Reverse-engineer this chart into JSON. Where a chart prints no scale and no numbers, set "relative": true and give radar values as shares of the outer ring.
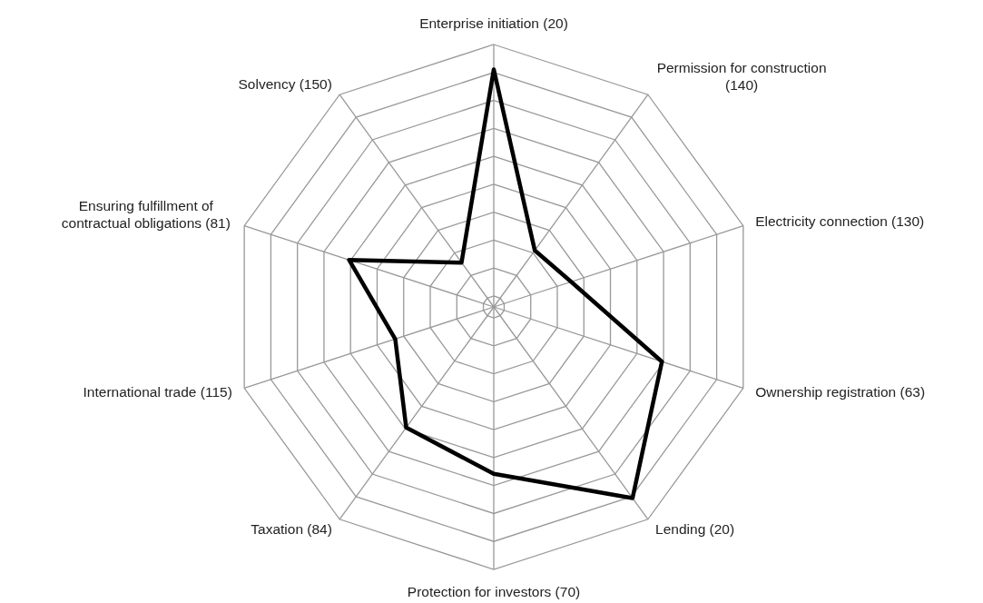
{
  "chart_data": {
    "type": "radar",
    "relative": true,
    "grid": true,
    "marker": "none",
    "line_style": "solid",
    "categories": [
      "Enterprise initiation (20)",
      "Permission for construction (140)",
      "Electricity connection (130)",
      "Ownership registration (63)",
      "Lending (20)",
      "Protection for investors (70)",
      "Taxation (84)",
      "International trade (115)",
      "Ensuring fulfillment of contractual obligations (81)",
      "Solvency (150)"
    ],
    "series": [
      {
        "color": "#000000",
        "values": [
          0.905,
          0.266,
          0.31,
          0.674,
          0.9,
          0.636,
          0.568,
          0.395,
          0.58,
          0.209
        ]
      }
    ]
  }
}
